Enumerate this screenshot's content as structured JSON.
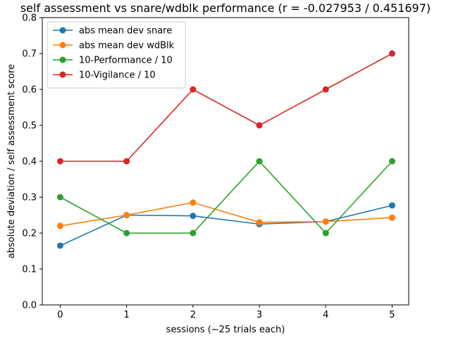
{
  "chart_data": {
    "type": "line",
    "title": "self assessment vs snare/wdblk performance (r = -0.027953 / 0.451697)",
    "xlabel": "sessions (~25 trials each)",
    "ylabel": "absolute deviation / self assessment score",
    "x": [
      0,
      1,
      2,
      3,
      4,
      5
    ],
    "xticks": [
      "0",
      "1",
      "2",
      "3",
      "4",
      "5"
    ],
    "xlim": [
      -0.27,
      5.25
    ],
    "ylim": [
      0.0,
      0.8
    ],
    "yticks": [
      "0.0",
      "0.1",
      "0.2",
      "0.3",
      "0.4",
      "0.5",
      "0.6",
      "0.7",
      "0.8"
    ],
    "grid": false,
    "legend_position": "top-left",
    "series": [
      {
        "name": "abs mean dev snare",
        "color": "#1f77b4",
        "values": [
          0.165,
          0.25,
          0.248,
          0.225,
          0.232,
          0.277
        ]
      },
      {
        "name": "abs mean dev wdBlk",
        "color": "#ff7f0e",
        "values": [
          0.22,
          0.25,
          0.285,
          0.23,
          0.232,
          0.243
        ]
      },
      {
        "name": "10-Performance / 10",
        "color": "#2ca02c",
        "values": [
          0.3,
          0.2,
          0.2,
          0.4,
          0.2,
          0.4
        ]
      },
      {
        "name": "10-Vigilance / 10",
        "color": "#d62728",
        "values": [
          0.4,
          0.4,
          0.6,
          0.5,
          0.6,
          0.7
        ]
      }
    ]
  }
}
